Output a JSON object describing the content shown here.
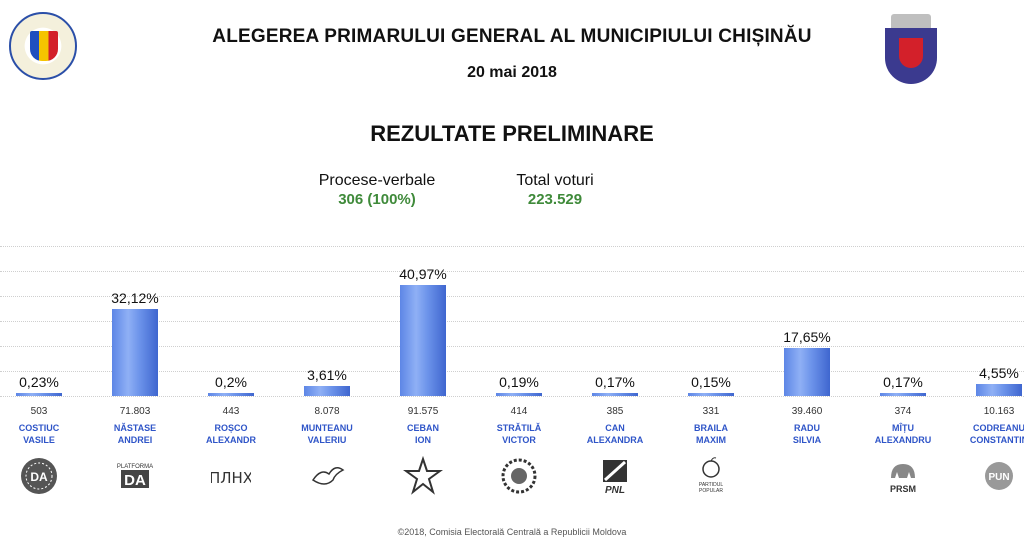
{
  "header": {
    "title": "ALEGEREA PRIMARULUI GENERAL AL MUNICIPIULUI CHIȘINĂU",
    "date": "20 mai 2018",
    "subtitle": "REZULTATE PRELIMINARE",
    "left_emblem": "cec-seal-emblem",
    "right_emblem": "chisinau-coat-of-arms"
  },
  "stats": {
    "pv_label": "Procese-verbale",
    "pv_value": "306 (100%)",
    "votes_label": "Total voturi",
    "votes_value": "223.529",
    "value_color": "#3f8a3a"
  },
  "chart_data": {
    "type": "bar",
    "categories": [
      "COSTIUC VASILE",
      "NĂSTASE ANDREI",
      "ROȘCO ALEXANDR",
      "MUNTEANU VALERIU",
      "CEBAN ION",
      "STRĂTILĂ VICTOR",
      "CAN ALEXANDRA",
      "BRAILA MAXIM",
      "RADU SILVIA",
      "MÎȚU ALEXANDRU",
      "CODREANU CONSTANTIN"
    ],
    "values": [
      0.23,
      32.12,
      0.2,
      3.61,
      40.97,
      0.19,
      0.17,
      0.15,
      17.65,
      0.17,
      4.55
    ],
    "value_labels": [
      "0,23%",
      "32,12%",
      "0,2%",
      "3,61%",
      "40,97%",
      "0,19%",
      "0,17%",
      "0,15%",
      "17,65%",
      "0,17%",
      "4,55%"
    ],
    "votes": [
      "503",
      "71.803",
      "443",
      "8.078",
      "91.575",
      "414",
      "385",
      "331",
      "39.460",
      "374",
      "10.163"
    ],
    "name_lines": [
      [
        "COSTIUC",
        "VASILE"
      ],
      [
        "NĂSTASE",
        "ANDREI"
      ],
      [
        "ROȘCO",
        "ALEXANDR"
      ],
      [
        "MUNTEANU",
        "VALERIU"
      ],
      [
        "CEBAN",
        "ION"
      ],
      [
        "STRĂTILĂ",
        "VICTOR"
      ],
      [
        "CAN",
        "ALEXANDRA"
      ],
      [
        "BRAILA",
        "MAXIM"
      ],
      [
        "RADU",
        "SILVIA"
      ],
      [
        "MÎȚU",
        "ALEXANDRU"
      ],
      [
        "CODREANU",
        "CONSTANTIN"
      ]
    ],
    "logos": [
      "da-circle-icon",
      "platforma-da-icon",
      "ppnh-letters-icon",
      "dove-bird-icon",
      "star-icon",
      "sunflower-icon",
      "pnl-icon",
      "apple-partidul-popular-icon",
      "none",
      "bear-prsm-icon",
      "pun-circle-icon"
    ],
    "logo_texts": [
      "DA",
      "DA",
      "ПЛНХ",
      "",
      "",
      "",
      "PNL",
      "PARTIDUL POPULAR",
      "",
      "PRSM",
      "PUN"
    ],
    "ylim": [
      0,
      50
    ],
    "grid": true,
    "bar_color": "#6c93ea"
  },
  "footer": {
    "text": "©2018, Comisia Electorală Centrală a Republicii Moldova"
  }
}
